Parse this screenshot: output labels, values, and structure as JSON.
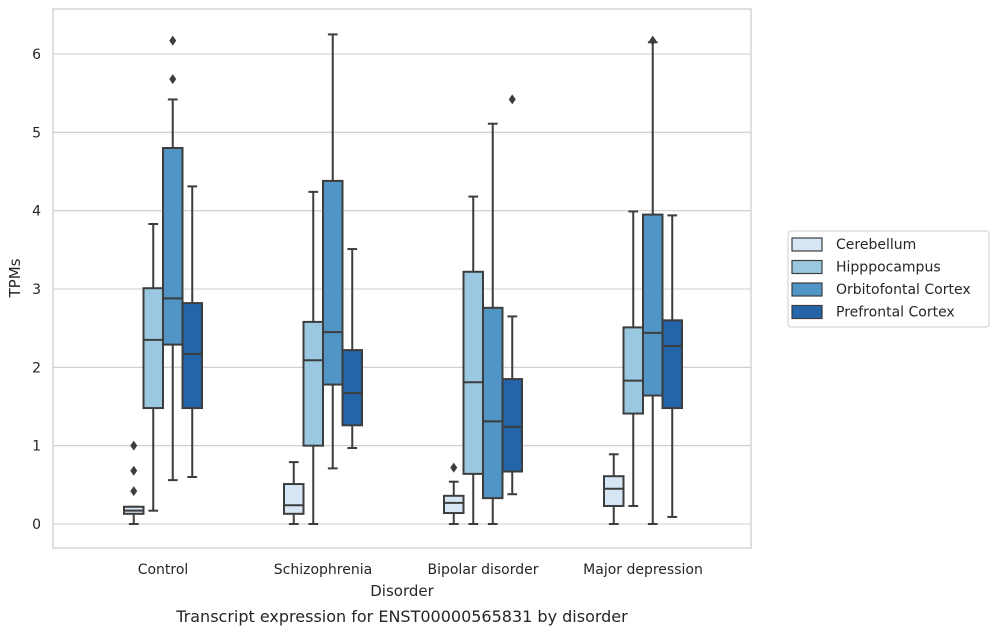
{
  "chart_data": {
    "type": "box",
    "xlabel": "Disorder",
    "ylabel": "TPMs",
    "caption": "Transcript expression for ENST00000565831 by disorder",
    "ylim": [
      -0.3,
      6.6
    ],
    "yticks": [
      0,
      1,
      2,
      3,
      4,
      5,
      6
    ],
    "grid": "horizontal",
    "legend_position": "right",
    "categories": [
      "Control",
      "Schizophrenia",
      "Bipolar disorder",
      "Major depression"
    ],
    "series": [
      {
        "name": "Cerebellum",
        "color": "#d6e6f4",
        "boxes": [
          {
            "min": 0.0,
            "q1": 0.13,
            "median": 0.17,
            "q3": 0.22,
            "max": 0.22,
            "outliers": [
              0.42,
              0.68,
              1.0
            ]
          },
          {
            "min": 0.0,
            "q1": 0.13,
            "median": 0.24,
            "q3": 0.51,
            "max": 0.79,
            "outliers": []
          },
          {
            "min": 0.0,
            "q1": 0.14,
            "median": 0.27,
            "q3": 0.36,
            "max": 0.54,
            "outliers": [
              0.72
            ]
          },
          {
            "min": 0.0,
            "q1": 0.23,
            "median": 0.45,
            "q3": 0.61,
            "max": 0.89,
            "outliers": []
          }
        ]
      },
      {
        "name": "Hipppocampus",
        "color": "#9ac8e0",
        "boxes": [
          {
            "min": 0.17,
            "q1": 1.48,
            "median": 2.35,
            "q3": 3.01,
            "max": 3.83,
            "outliers": []
          },
          {
            "min": 0.0,
            "q1": 1.0,
            "median": 2.09,
            "q3": 2.58,
            "max": 4.24,
            "outliers": []
          },
          {
            "min": 0.0,
            "q1": 0.64,
            "median": 1.81,
            "q3": 3.22,
            "max": 4.18,
            "outliers": []
          },
          {
            "min": 0.23,
            "q1": 1.41,
            "median": 1.83,
            "q3": 2.51,
            "max": 3.99,
            "outliers": []
          }
        ]
      },
      {
        "name": "Orbitofontal Cortex",
        "color": "#5095c6",
        "boxes": [
          {
            "min": 0.56,
            "q1": 2.29,
            "median": 2.88,
            "q3": 4.8,
            "max": 5.42,
            "outliers": [
              5.68,
              6.17
            ]
          },
          {
            "min": 0.71,
            "q1": 1.78,
            "median": 2.45,
            "q3": 4.38,
            "max": 6.25,
            "outliers": []
          },
          {
            "min": 0.0,
            "q1": 0.33,
            "median": 1.31,
            "q3": 2.76,
            "max": 5.11,
            "outliers": []
          },
          {
            "min": 0.0,
            "q1": 1.64,
            "median": 2.44,
            "q3": 3.95,
            "max": 6.15,
            "outliers": [
              6.17
            ]
          }
        ]
      },
      {
        "name": "Prefrontal Cortex",
        "color": "#2464a8",
        "boxes": [
          {
            "min": 0.6,
            "q1": 1.48,
            "median": 2.17,
            "q3": 2.82,
            "max": 4.31,
            "outliers": []
          },
          {
            "min": 0.97,
            "q1": 1.26,
            "median": 1.67,
            "q3": 2.22,
            "max": 3.51,
            "outliers": []
          },
          {
            "min": 0.38,
            "q1": 0.67,
            "median": 1.24,
            "q3": 1.85,
            "max": 2.65,
            "outliers": [
              5.42
            ]
          },
          {
            "min": 0.09,
            "q1": 1.48,
            "median": 2.27,
            "q3": 2.6,
            "max": 3.94,
            "outliers": []
          }
        ]
      }
    ]
  }
}
